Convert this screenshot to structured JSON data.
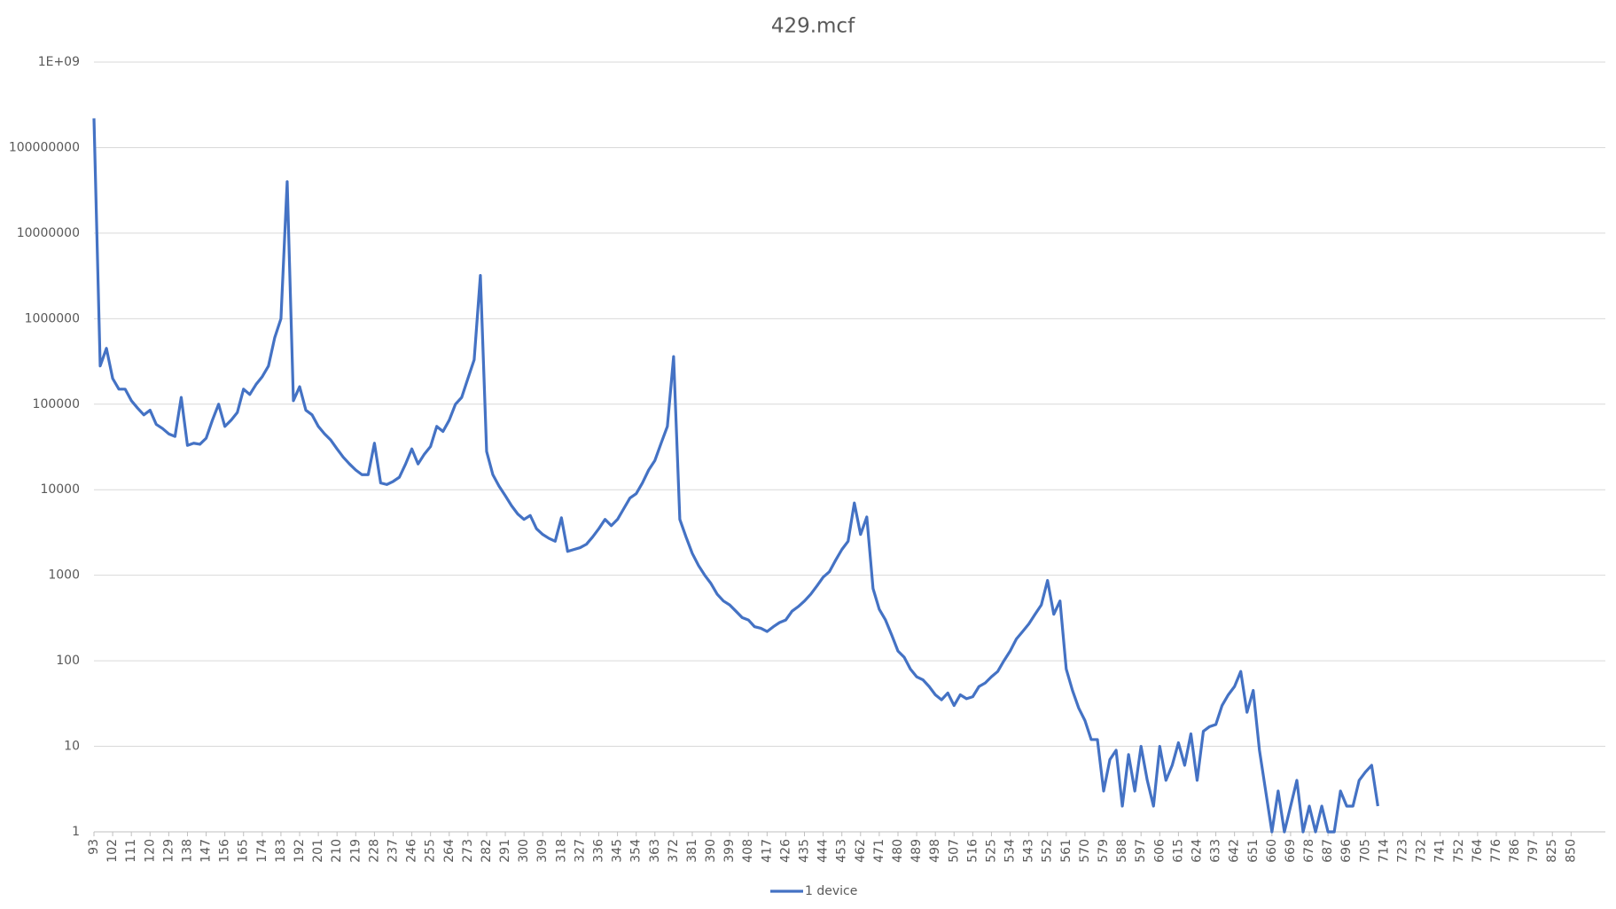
{
  "chart_data": {
    "type": "line",
    "title": "429.mcf",
    "categories": [
      "93",
      null,
      null,
      "102",
      null,
      null,
      "111",
      null,
      null,
      "120",
      null,
      null,
      "129",
      null,
      null,
      "138",
      null,
      null,
      "147",
      null,
      null,
      "156",
      null,
      null,
      "165",
      null,
      null,
      "174",
      null,
      null,
      "183",
      null,
      null,
      "192",
      null,
      null,
      "201",
      null,
      null,
      "210",
      null,
      null,
      "219",
      null,
      null,
      "228",
      null,
      null,
      "237",
      null,
      null,
      "246",
      null,
      null,
      "255",
      null,
      null,
      "264",
      null,
      null,
      "273",
      null,
      null,
      "282",
      null,
      null,
      "291",
      null,
      null,
      "300",
      null,
      null,
      "309",
      null,
      null,
      "318",
      null,
      null,
      "327",
      null,
      null,
      "336",
      null,
      null,
      "345",
      null,
      null,
      "354",
      null,
      null,
      "363",
      null,
      null,
      "372",
      null,
      null,
      "381",
      null,
      null,
      "390",
      null,
      null,
      "399",
      null,
      null,
      "408",
      null,
      null,
      "417",
      null,
      null,
      "426",
      null,
      null,
      "435",
      null,
      null,
      "444",
      null,
      null,
      "453",
      null,
      null,
      "462",
      null,
      null,
      "471",
      null,
      null,
      "480",
      null,
      null,
      "489",
      null,
      null,
      "498",
      null,
      null,
      "507",
      null,
      null,
      "516",
      null,
      null,
      "525",
      null,
      null,
      "534",
      null,
      null,
      "543",
      null,
      null,
      "552",
      null,
      null,
      "561",
      null,
      null,
      "570",
      null,
      null,
      "579",
      null,
      null,
      "588",
      null,
      null,
      "597",
      null,
      null,
      "606",
      null,
      null,
      "615",
      null,
      null,
      "624",
      null,
      null,
      "633",
      null,
      null,
      "642",
      null,
      null,
      "651",
      null,
      null,
      "660",
      null,
      null,
      "669",
      null,
      null,
      "678",
      null,
      null,
      "687",
      null,
      null,
      "696",
      null,
      null,
      "705",
      null,
      null,
      "714",
      null,
      null,
      "723",
      null,
      null,
      "732",
      null,
      null,
      "741",
      null,
      null,
      "752",
      null,
      null,
      "764",
      null,
      null,
      "776",
      null,
      null,
      "786",
      null,
      null,
      "797",
      null,
      null,
      "825",
      null,
      null,
      "850",
      null,
      null
    ],
    "series": [
      {
        "name": "1 device",
        "color": "#4472c4",
        "values": [
          220000000,
          280000,
          450000,
          200000,
          150000,
          150000,
          110000,
          90000,
          75000,
          85000,
          58000,
          52000,
          45000,
          42000,
          120000,
          33000,
          35000,
          34000,
          40000,
          65000,
          100000,
          55000,
          65000,
          80000,
          150000,
          130000,
          170000,
          210000,
          280000,
          600000,
          1000000,
          40000000,
          110000,
          160000,
          85000,
          75000,
          55000,
          45000,
          38000,
          30000,
          24000,
          20000,
          17000,
          15000,
          15000,
          35000,
          12000,
          11500,
          12500,
          14000,
          20000,
          30000,
          20000,
          26000,
          32000,
          55000,
          48000,
          65000,
          100000,
          120000,
          200000,
          330000,
          3200000,
          28000,
          15000,
          11000,
          8500,
          6500,
          5200,
          4500,
          5000,
          3500,
          3000,
          2700,
          2500,
          4700,
          1900,
          2000,
          2100,
          2300,
          2800,
          3500,
          4500,
          3800,
          4500,
          6000,
          8000,
          9000,
          12000,
          17000,
          22000,
          35000,
          55000,
          360000,
          4500,
          2800,
          1800,
          1300,
          1000,
          800,
          600,
          500,
          450,
          380,
          320,
          300,
          250,
          240,
          220,
          250,
          280,
          300,
          380,
          430,
          500,
          600,
          750,
          950,
          1100,
          1500,
          2000,
          2500,
          7000,
          3000,
          4800,
          700,
          400,
          300,
          200,
          130,
          110,
          80,
          65,
          60,
          50,
          40,
          35,
          42,
          30,
          40,
          36,
          38,
          50,
          55,
          65,
          75,
          100,
          130,
          180,
          220,
          270,
          350,
          450,
          870,
          350,
          500,
          80,
          45,
          28,
          20,
          12,
          12,
          3,
          7,
          9,
          2,
          8,
          3,
          10,
          4,
          2,
          10,
          4,
          6,
          11,
          6,
          14,
          4,
          15,
          17,
          18,
          30,
          40,
          50,
          75,
          25,
          45,
          9,
          3,
          1,
          3,
          1,
          2,
          4,
          1,
          2,
          1,
          2,
          1,
          1,
          3,
          2,
          2,
          4,
          5,
          6,
          2,
          null,
          null,
          null,
          null,
          null,
          null,
          null,
          null,
          null,
          null,
          null,
          null,
          null,
          null,
          null,
          null,
          null,
          null,
          null,
          null,
          null,
          null,
          null,
          null,
          null,
          null,
          null,
          null,
          null,
          null,
          null,
          null,
          null
        ]
      }
    ],
    "y_scale": "log",
    "ylim": [
      1,
      1000000000
    ],
    "yticks": [
      1,
      10,
      100,
      1000,
      10000,
      100000,
      1000000,
      10000000,
      100000000,
      {
        "value": 1000000000,
        "label": "1E+09"
      }
    ],
    "grid": true,
    "legend": "bottom"
  }
}
